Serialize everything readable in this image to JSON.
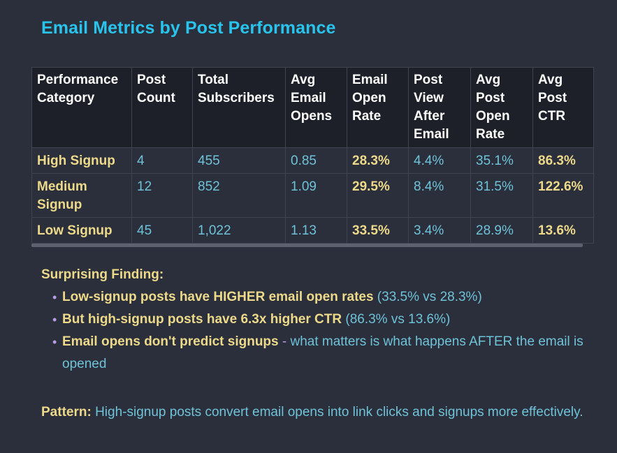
{
  "title": "Email Metrics by Post Performance",
  "table": {
    "headers": [
      "Performance Category",
      "Post Count",
      "Total Subscribers",
      "Avg Email Opens",
      "Email Open Rate",
      "Post View After Email",
      "Avg Post Open Rate",
      "Avg Post CTR"
    ],
    "rows": [
      [
        "High Signup",
        "4",
        "455",
        "0.85",
        "28.3%",
        "4.4%",
        "35.1%",
        "86.3%"
      ],
      [
        "Medium Signup",
        "12",
        "852",
        "1.09",
        "29.5%",
        "8.4%",
        "31.5%",
        "122.6%"
      ],
      [
        "Low Signup",
        "45",
        "1,022",
        "1.13",
        "33.5%",
        "3.4%",
        "28.9%",
        "13.6%"
      ]
    ]
  },
  "findings": {
    "heading": "Surprising Finding:",
    "bullet": "•",
    "items": [
      {
        "bold": "Low-signup posts have HIGHER email open rates",
        "rest": " (33.5% vs 28.3%)"
      },
      {
        "bold": "But high-signup posts have 6.3x higher CTR",
        "rest": " (86.3% vs 13.6%)"
      },
      {
        "bold": "Email opens don't predict signups",
        "sep": " - ",
        "rest": "what matters is what happens AFTER the email is opened"
      }
    ]
  },
  "pattern": {
    "label": "Pattern:",
    "text": " High-signup posts convert email opens into link clicks and signups more effectively."
  },
  "colors": {
    "background": "#2b2e3b",
    "title": "#29c4ec",
    "accent_yellow": "#ecd98a",
    "accent_cyan": "#6fc3d8",
    "bullet": "#b79be6"
  }
}
